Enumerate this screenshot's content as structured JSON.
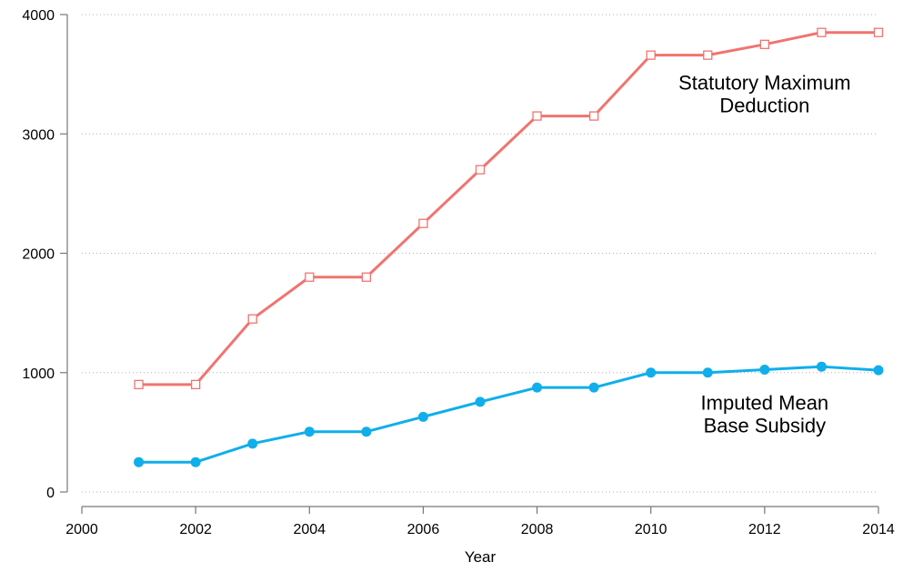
{
  "chart_data": {
    "type": "line",
    "xlabel": "Year",
    "ylabel": "",
    "xlim": [
      2000,
      2014
    ],
    "ylim": [
      0,
      4000
    ],
    "x_ticks": [
      2000,
      2002,
      2004,
      2006,
      2008,
      2010,
      2012,
      2014
    ],
    "y_ticks": [
      0,
      1000,
      2000,
      3000,
      4000
    ],
    "grid": "horizontal-dotted",
    "x": [
      2001,
      2002,
      2003,
      2004,
      2005,
      2006,
      2007,
      2008,
      2009,
      2010,
      2011,
      2012,
      2013,
      2014
    ],
    "series": [
      {
        "key": "max_deduction",
        "color": "#f07470",
        "marker": "hollow-square",
        "values": [
          900,
          900,
          1450,
          1800,
          1800,
          2250,
          2700,
          3150,
          3150,
          3660,
          3660,
          3750,
          3850,
          3850
        ]
      },
      {
        "key": "mean_base_subsidy",
        "color": "#10aeea",
        "marker": "filled-circle",
        "values": [
          250,
          250,
          405,
          505,
          505,
          630,
          755,
          875,
          875,
          1000,
          1000,
          1025,
          1050,
          1020
        ]
      }
    ],
    "annotations": [
      {
        "series": "max_deduction",
        "lines": [
          "Statutory Maximum",
          "Deduction"
        ],
        "anchor_x": 2012,
        "anchor_y": 3370
      },
      {
        "series": "mean_base_subsidy",
        "lines": [
          "Imputed Mean",
          "Base Subsidy"
        ],
        "anchor_x": 2012,
        "anchor_y": 690
      }
    ]
  }
}
